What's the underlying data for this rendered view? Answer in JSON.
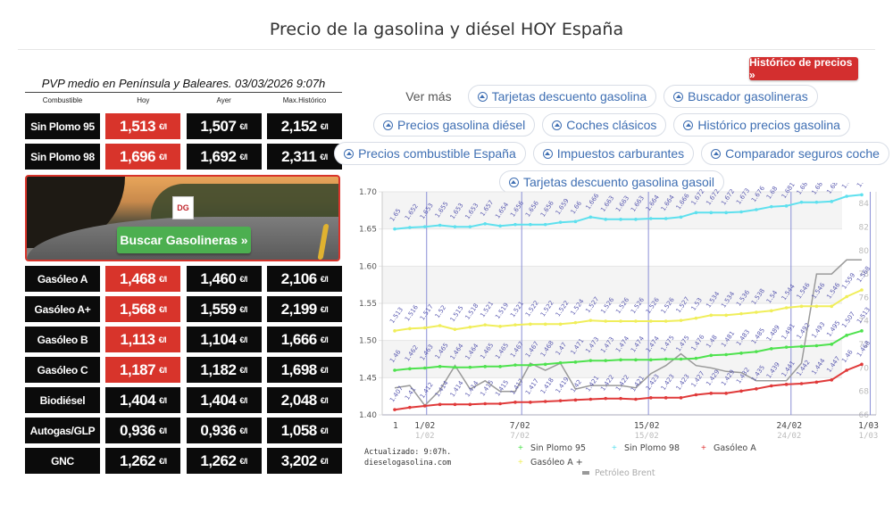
{
  "header": {
    "title": "Precio de la gasolina y diésel HOY España"
  },
  "price_table": {
    "caption": "PVP medio en Península y Baleares. 03/03/2026 9:07h",
    "columns": [
      "Combustible",
      "Hoy",
      "Ayer",
      "Max.Histórico"
    ],
    "unit": "€/l",
    "rows_top": [
      {
        "name": "Sin Plomo 95",
        "today": "1,513",
        "yesterday": "1,507",
        "max": "2,152"
      },
      {
        "name": "Sin Plomo 98",
        "today": "1,696",
        "yesterday": "1,692",
        "max": "2,311"
      }
    ],
    "rows_bottom": [
      {
        "name": "Gasóleo A",
        "today": "1,468",
        "yesterday": "1,460",
        "max": "2,106",
        "highlight": true
      },
      {
        "name": "Gasóleo A+",
        "today": "1,568",
        "yesterday": "1,559",
        "max": "2,199",
        "highlight": true
      },
      {
        "name": "Gasóleo B",
        "today": "1,113",
        "yesterday": "1,104",
        "max": "1,666",
        "highlight": true
      },
      {
        "name": "Gasóleo C",
        "today": "1,187",
        "yesterday": "1,182",
        "max": "1,698",
        "highlight": true
      },
      {
        "name": "Biodiésel",
        "today": "1,404",
        "yesterday": "1,404",
        "max": "2,048",
        "highlight": false
      },
      {
        "name": "Autogas/GLP",
        "today": "0,936",
        "yesterday": "0,936",
        "max": "1,058",
        "highlight": false
      },
      {
        "name": "GNC",
        "today": "1,262",
        "yesterday": "1,262",
        "max": "3,202",
        "highlight": false
      }
    ]
  },
  "promo": {
    "logo": "DG",
    "button": "Buscar Gasolineras »"
  },
  "history_button": "Histórico de precios »",
  "links": {
    "label": "Ver más",
    "rows": [
      [
        "Tarjetas descuento gasolina",
        "Buscador gasolineras"
      ],
      [
        "Precios gasolina diésel",
        "Coches clásicos",
        "Histórico precios gasolina"
      ],
      [
        "Precios combustible España",
        "Impuestos carburantes",
        "Comparador seguros coche"
      ],
      [
        "Tarjetas descuento gasolina gasoil"
      ]
    ]
  },
  "chart_footer": {
    "updated": "Actualizado: 9:07h.",
    "site": "dieselogasolina.com"
  },
  "chart_data": {
    "type": "line",
    "title": "",
    "x_ticks": [
      "1/02",
      "7/02",
      "15/02",
      "24/02",
      "1/03"
    ],
    "x_first_label": "1",
    "ylabel_left_ticks": [
      1.4,
      1.45,
      1.5,
      1.55,
      1.6,
      1.65,
      1.7
    ],
    "ylabel_right_ticks": [
      66,
      68,
      70,
      72,
      74,
      76,
      78,
      80,
      82,
      84
    ],
    "ylim_left": [
      1.4,
      1.7
    ],
    "ylim_right": [
      66,
      85
    ],
    "legend": [
      "Sin Plomo 95",
      "Sin Plomo 98",
      "Gasóleo A",
      "Gasóleo A +",
      "Petróleo Brent"
    ],
    "series": [
      {
        "name": "Sin Plomo 98",
        "color": "#5ee0ee",
        "axis": "left",
        "values": [
          1.65,
          1.652,
          1.653,
          1.655,
          1.653,
          1.653,
          1.657,
          1.654,
          1.656,
          1.656,
          1.656,
          1.659,
          1.66,
          1.666,
          1.663,
          1.663,
          1.663,
          1.664,
          1.664,
          1.666,
          1.672,
          1.672,
          1.672,
          1.673,
          1.676,
          1.68,
          1.681,
          1.686,
          1.686,
          1.687,
          1.694,
          1.696
        ]
      },
      {
        "name": "Gasóleo A +",
        "color": "#f0ee5a",
        "axis": "left",
        "values": [
          1.513,
          1.516,
          1.517,
          1.52,
          1.515,
          1.518,
          1.521,
          1.519,
          1.521,
          1.522,
          1.522,
          1.522,
          1.524,
          1.527,
          1.526,
          1.526,
          1.526,
          1.526,
          1.526,
          1.527,
          1.53,
          1.534,
          1.534,
          1.536,
          1.538,
          1.54,
          1.544,
          1.546,
          1.546,
          1.546,
          1.559,
          1.568
        ]
      },
      {
        "name": "Sin Plomo 95",
        "color": "#4ee24e",
        "axis": "left",
        "values": [
          1.46,
          1.462,
          1.463,
          1.465,
          1.464,
          1.464,
          1.465,
          1.465,
          1.467,
          1.467,
          1.468,
          1.47,
          1.471,
          1.473,
          1.473,
          1.474,
          1.474,
          1.474,
          1.475,
          1.475,
          1.476,
          1.48,
          1.481,
          1.483,
          1.485,
          1.489,
          1.491,
          1.492,
          1.493,
          1.495,
          1.507,
          1.513
        ]
      },
      {
        "name": "Gasóleo A",
        "color": "#e03a3a",
        "axis": "left",
        "values": [
          1.407,
          1.41,
          1.412,
          1.414,
          1.414,
          1.414,
          1.415,
          1.415,
          1.417,
          1.417,
          1.418,
          1.419,
          1.42,
          1.421,
          1.422,
          1.422,
          1.421,
          1.423,
          1.423,
          1.423,
          1.427,
          1.429,
          1.429,
          1.432,
          1.435,
          1.439,
          1.441,
          1.442,
          1.444,
          1.447,
          1.46,
          1.468
        ]
      },
      {
        "name": "Petróleo Brent",
        "color": "#9a9a9a",
        "axis": "right",
        "values": [
          68.3,
          68.5,
          66.8,
          68.1,
          70.2,
          68.2,
          68.9,
          68.0,
          68.0,
          70.4,
          69.8,
          70.4,
          68.2,
          68.5,
          68.5,
          68.5,
          68.3,
          69.5,
          70.2,
          71.2,
          70.2,
          70.0,
          69.7,
          69.6,
          68.9,
          68.9,
          68.9,
          70.4,
          78.0,
          78.0,
          79.2,
          79.2
        ]
      }
    ]
  }
}
